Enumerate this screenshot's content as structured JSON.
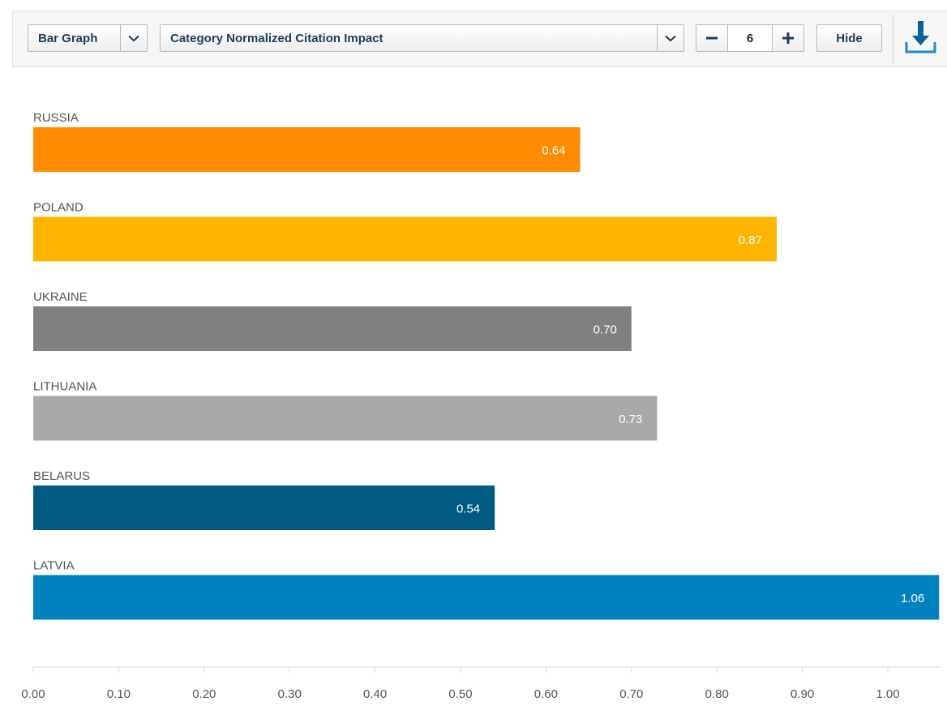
{
  "toolbar": {
    "chart_type": "Bar Graph",
    "metric": "Category Normalized Citation Impact",
    "count": "6",
    "hide_label": "Hide",
    "icons": {
      "dropdown": "chevron-down-icon",
      "decrement": "minus-icon",
      "increment": "plus-icon",
      "download": "download-icon"
    }
  },
  "chart_data": {
    "type": "bar",
    "orientation": "horizontal",
    "categories": [
      "RUSSIA",
      "POLAND",
      "UKRAINE",
      "LITHUANIA",
      "BELARUS",
      "LATVIA"
    ],
    "values": [
      0.64,
      0.87,
      0.7,
      0.73,
      0.54,
      1.06
    ],
    "value_labels": [
      "0.64",
      "0.87",
      "0.70",
      "0.73",
      "0.54",
      "1.06"
    ],
    "colors": [
      "#ff8c00",
      "#ffb400",
      "#808080",
      "#a9a9a9",
      "#005a82",
      "#0082be"
    ],
    "xlim": [
      0,
      1.06
    ],
    "x_ticks": [
      0,
      0.1,
      0.2,
      0.3,
      0.4,
      0.5,
      0.6,
      0.7,
      0.8,
      0.9,
      1.0
    ],
    "x_tick_labels": [
      "0.00",
      "0.10",
      "0.20",
      "0.30",
      "0.40",
      "0.50",
      "0.60",
      "0.70",
      "0.80",
      "0.90",
      "1.00"
    ],
    "grid": false,
    "legend": "none",
    "label_color": "#555555",
    "axis_color": "#d8d8d8"
  }
}
